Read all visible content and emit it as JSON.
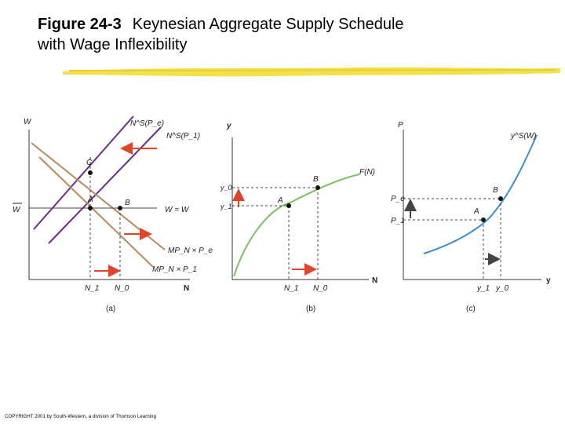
{
  "title": {
    "number": "Figure 24-3",
    "line1": "Keynesian Aggregate Supply Schedule",
    "line2": "with Wage Inflexibility"
  },
  "panel_a": {
    "y_axis": "W",
    "x_axis": "N",
    "caption": "(a)",
    "w_bar": "W",
    "labels": {
      "ns_pe": "N^S(P_e)",
      "ns_p1": "N^S(P_1)",
      "point_c": "C",
      "point_a": "A",
      "point_b": "B",
      "w_line": "W = W",
      "mpn_pe": "MP_N × P_e",
      "mpn_p1": "MP_N × P_1",
      "n1": "N_1",
      "n0": "N_0"
    }
  },
  "panel_b": {
    "y_axis": "y",
    "x_axis": "N",
    "caption": "(b)",
    "labels": {
      "fn": "F(N)",
      "y0": "y_0",
      "y1": "y_1",
      "point_b": "B",
      "point_a": "A",
      "n1": "N_1",
      "n0": "N_0"
    }
  },
  "panel_c": {
    "y_axis": "P",
    "x_axis": "y",
    "caption": "(c)",
    "labels": {
      "ys": "y^S(W)",
      "pe": "P_e",
      "p1": "P_1",
      "point_b": "B",
      "point_a": "A",
      "y1": "y_1",
      "y0": "y_0"
    }
  },
  "copyright": "COPYRIGHT 2001 by South-Western, a division of Thomson Learning",
  "colors": {
    "brown": "#b8895a",
    "purple": "#6a2c8c",
    "green": "#7cc060",
    "blue": "#3d8fcc",
    "red": "#e0452a",
    "highlight": "#f3e04a"
  }
}
